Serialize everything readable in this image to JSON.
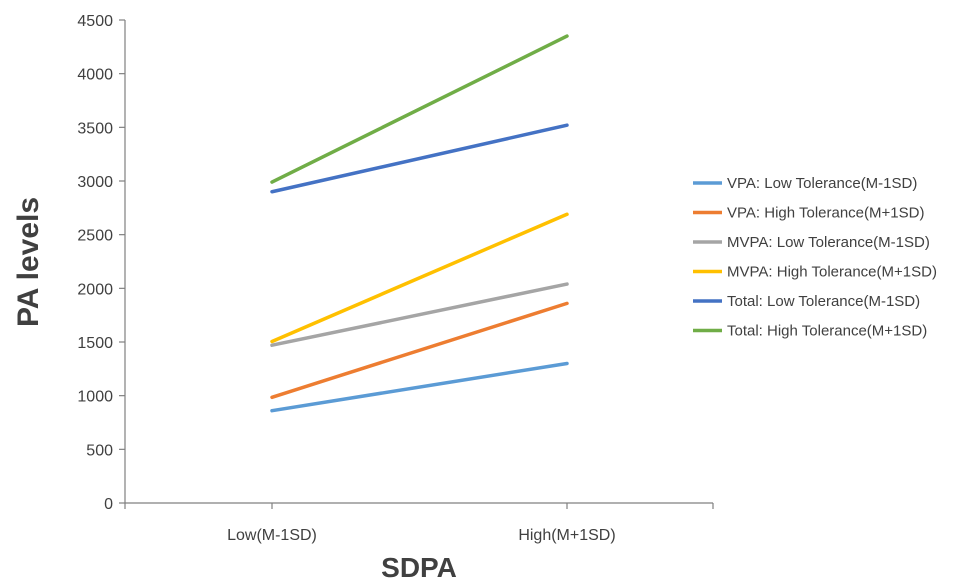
{
  "chart_data": {
    "type": "line",
    "title": "",
    "xlabel": "SDPA",
    "ylabel": "PA levels",
    "categories": [
      "Low(M-1SD)",
      "High(M+1SD)"
    ],
    "ylim": [
      0,
      4500
    ],
    "yticks": [
      0,
      500,
      1000,
      1500,
      2000,
      2500,
      3000,
      3500,
      4000,
      4500
    ],
    "grid": false,
    "legend_position": "right",
    "series": [
      {
        "name": "VPA: Low Tolerance(M-1SD)",
        "values": [
          860,
          1300
        ],
        "color": "#5b9bd5"
      },
      {
        "name": "VPA: High Tolerance(M+1SD)",
        "values": [
          985,
          1860
        ],
        "color": "#ed7d31"
      },
      {
        "name": "MVPA: Low Tolerance(M-1SD)",
        "values": [
          1470,
          2040
        ],
        "color": "#a5a5a5"
      },
      {
        "name": "MVPA: High Tolerance(M+1SD)",
        "values": [
          1505,
          2690
        ],
        "color": "#ffc000"
      },
      {
        "name": "Total: Low Tolerance(M-1SD)",
        "values": [
          2900,
          3520
        ],
        "color": "#4472c4"
      },
      {
        "name": "Total: High Tolerance(M+1SD)",
        "values": [
          2990,
          4350
        ],
        "color": "#70ad47"
      }
    ]
  }
}
